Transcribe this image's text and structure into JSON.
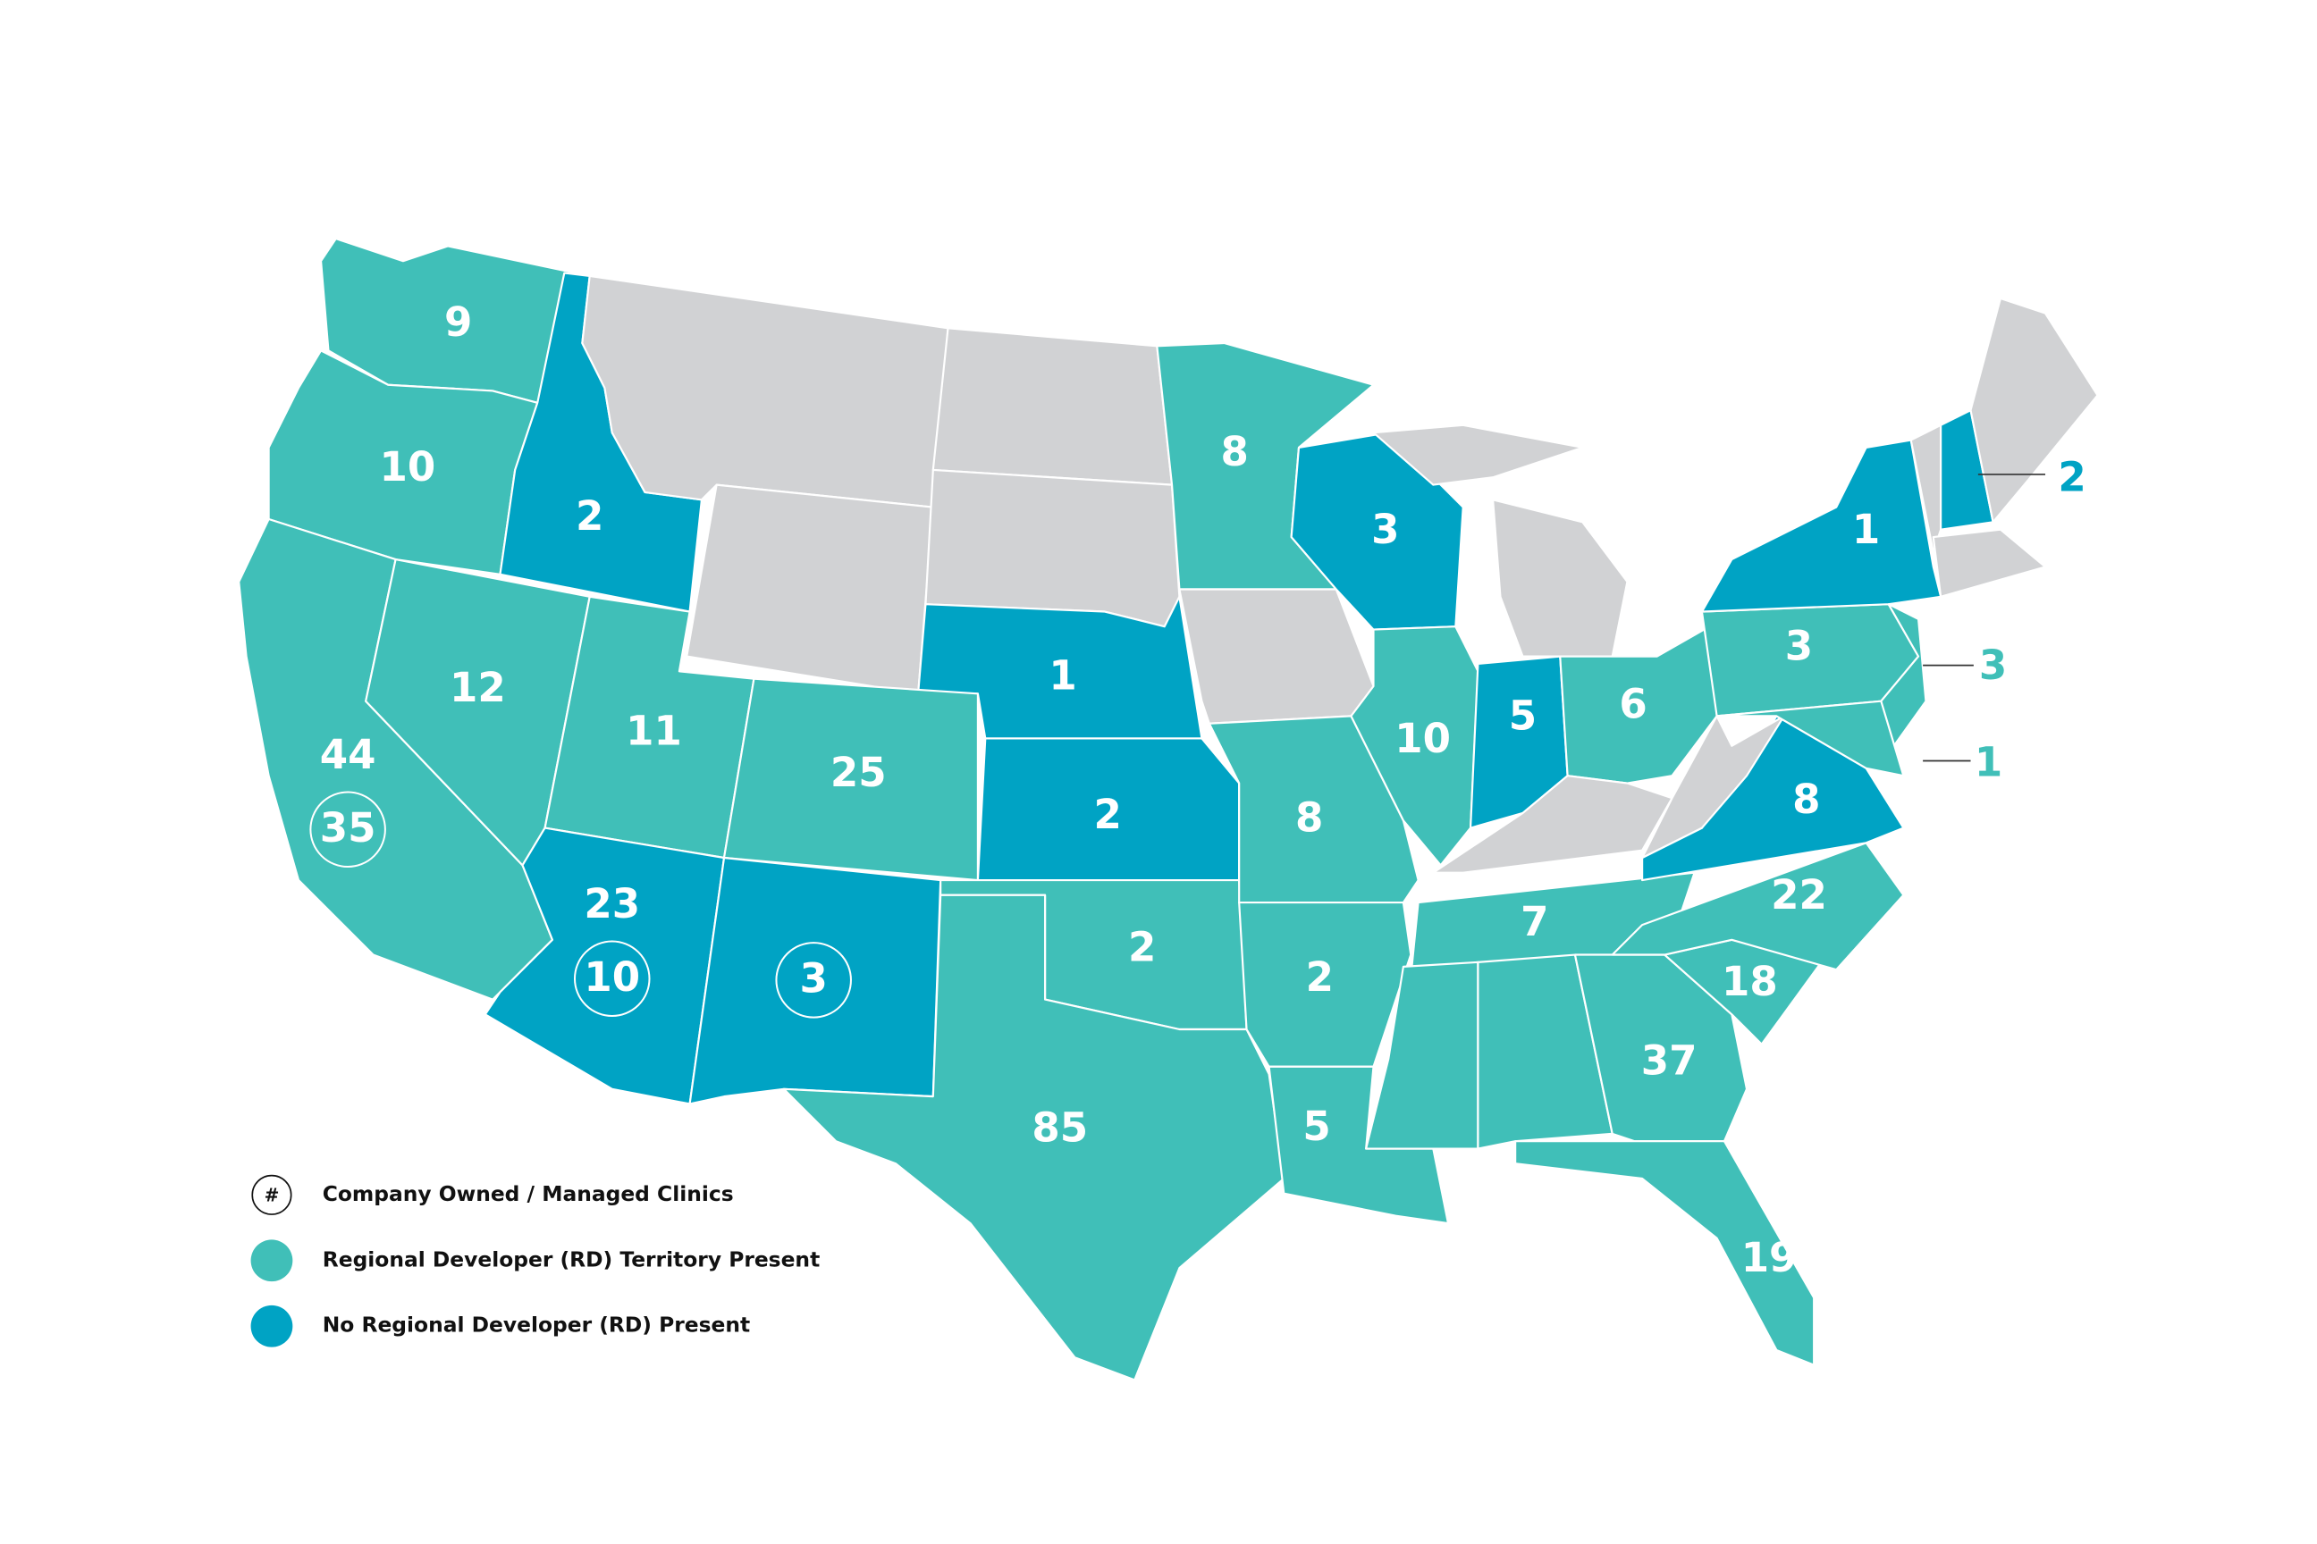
{
  "labels": [
    {
      "count": 9
    },
    {
      "count": 10
    },
    {
      "count": 2
    },
    {
      "count": 12
    },
    {
      "count": 11
    },
    {
      "count": 25
    },
    {
      "count": 44,
      "owned": 35
    },
    {
      "count": 23,
      "owned": 10
    },
    {
      "owned": 3
    },
    {
      "count": 1
    },
    {
      "count": 2
    },
    {
      "count": 8
    },
    {
      "count": 3
    },
    {
      "count": 1
    },
    {
      "count": 2
    },
    {
      "count": 5
    },
    {
      "count": 6
    },
    {
      "count": 10
    },
    {
      "count": 8
    },
    {
      "count": 3
    },
    {
      "count": 3
    },
    {
      "count": 1
    },
    {
      "count": 8
    },
    {
      "count": 7
    },
    {
      "count": 22
    },
    {
      "count": 2
    },
    {
      "count": 2
    },
    {
      "count": 18
    },
    {
      "count": 37
    },
    {
      "count": 85
    },
    {
      "count": 5
    },
    {
      "count": 19
    }
  ],
  "legend": {
    "symbol": "#",
    "items": [
      "Company Owned / Managed Clinics",
      "Regional Developer (RD) Territory Present",
      "No Regional Developer (RD) Present"
    ]
  }
}
